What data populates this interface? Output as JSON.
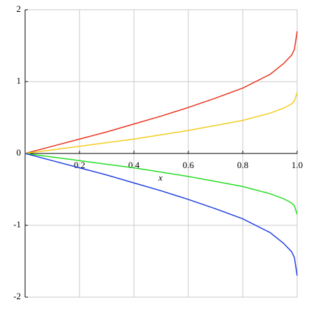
{
  "chart_data": {
    "type": "line",
    "x_label": "x",
    "x": [
      0,
      0.1,
      0.2,
      0.3,
      0.4,
      0.5,
      0.6,
      0.7,
      0.8,
      0.9,
      0.95,
      0.98,
      0.99,
      1.0
    ],
    "series": [
      {
        "color": "#e8321e",
        "values": [
          0,
          0.1,
          0.2,
          0.3,
          0.41,
          0.52,
          0.64,
          0.77,
          0.91,
          1.1,
          1.25,
          1.37,
          1.45,
          1.7
        ]
      },
      {
        "color": "#f2cc1c",
        "values": [
          0,
          0.05,
          0.1,
          0.15,
          0.2,
          0.26,
          0.32,
          0.39,
          0.46,
          0.56,
          0.63,
          0.69,
          0.73,
          0.85
        ]
      },
      {
        "color": "#22dd22",
        "values": [
          0,
          -0.05,
          -0.1,
          -0.15,
          -0.2,
          -0.26,
          -0.32,
          -0.39,
          -0.46,
          -0.56,
          -0.63,
          -0.69,
          -0.73,
          -0.85
        ]
      },
      {
        "color": "#1f3fe0",
        "values": [
          0,
          -0.1,
          -0.2,
          -0.3,
          -0.41,
          -0.52,
          -0.64,
          -0.77,
          -0.91,
          -1.1,
          -1.25,
          -1.37,
          -1.45,
          -1.7
        ]
      }
    ],
    "xlim": [
      0,
      1
    ],
    "ylim": [
      -2,
      2
    ],
    "xticks": [
      0.2,
      0.4,
      0.6,
      0.8,
      {
        "value": 1,
        "label": "1.0"
      }
    ],
    "yticks": [
      -2,
      -1,
      0,
      1,
      2
    ],
    "grid": true
  }
}
